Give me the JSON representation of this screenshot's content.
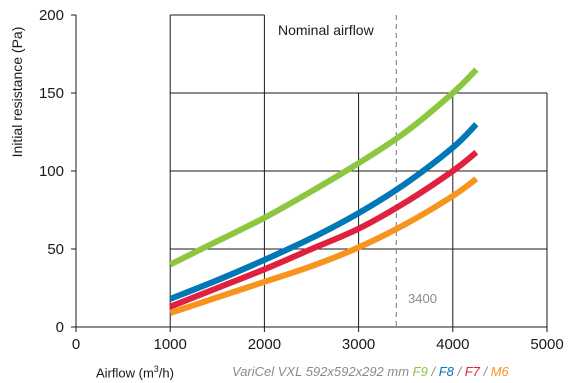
{
  "chart_data": {
    "type": "line",
    "xlabel_prefix": "Airflow (m",
    "xlabel_sup": "3",
    "xlabel_suffix": "/h)",
    "ylabel": "Initial resistance (Pa)",
    "xlim": [
      0,
      5000
    ],
    "ylim": [
      0,
      200
    ],
    "x_ticks": [
      "0",
      "1000",
      "2000",
      "3000",
      "4000",
      "5000"
    ],
    "y_ticks": [
      "0",
      "50",
      "100",
      "150",
      "200"
    ],
    "legend_prefix": "VariCel VXL 592x592x292 mm",
    "annotation": "Nominal airflow",
    "nominal_x": 3400,
    "nominal_label": "3400",
    "series": [
      {
        "name": "F9",
        "color": "#8dc63f",
        "x": [
          1000,
          1500,
          2000,
          2500,
          3000,
          3500,
          4000,
          4250
        ],
        "y": [
          40,
          55,
          70,
          87,
          105,
          125,
          150,
          165
        ]
      },
      {
        "name": "F8",
        "color": "#0077b6",
        "x": [
          1000,
          1500,
          2000,
          2500,
          3000,
          3500,
          4000,
          4250
        ],
        "y": [
          18,
          30,
          43,
          57,
          73,
          92,
          115,
          130
        ]
      },
      {
        "name": "F7",
        "color": "#e0203f",
        "x": [
          1000,
          1500,
          2000,
          2500,
          3000,
          3500,
          4000,
          4250
        ],
        "y": [
          13,
          25,
          37,
          50,
          63,
          80,
          100,
          112
        ]
      },
      {
        "name": "M6",
        "color": "#f7941d",
        "x": [
          1000,
          1500,
          2000,
          2500,
          3000,
          3500,
          4000,
          4250
        ],
        "y": [
          9,
          19,
          29,
          39,
          51,
          66,
          84,
          95
        ]
      }
    ]
  }
}
